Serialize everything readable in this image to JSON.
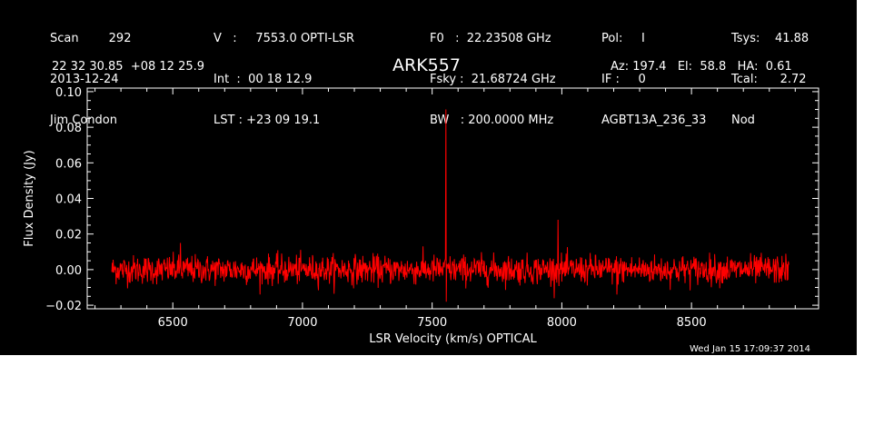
{
  "header": {
    "col1": [
      "Scan        292",
      "2013-12-24",
      "Jim Condon"
    ],
    "col2": [
      "V   :     7553.0 OPTI-LSR",
      "Int  :  00 18 12.9",
      "LST : +23 09 19.1"
    ],
    "col3": [
      "F0   :  22.23508 GHz",
      "Fsky :  21.68724 GHz",
      "BW   : 200.0000 MHz"
    ],
    "col4": [
      "Pol:     I",
      "IF :     0",
      "AGBT13A_236_33"
    ],
    "col5": [
      "Tsys:    41.88",
      "Tcal:      2.72",
      "Nod"
    ],
    "coords": "22 32 30.85  +08 12 25.9",
    "source": "ARK557",
    "azel": "Az: 197.4   El:  58.8   HA:  0.61",
    "timestamp": "Wed Jan 15 17:09:37 2014"
  },
  "colors": {
    "background": "#000000",
    "axes": "#ffffff",
    "trace": "#ff0000"
  },
  "chart_data": {
    "type": "line",
    "title": "ARK557",
    "xlabel": "LSR Velocity (km/s) OPTICAL",
    "ylabel": "Flux Density (Jy)",
    "xlim": [
      6170,
      8990
    ],
    "ylim": [
      -0.022,
      0.102
    ],
    "x_ticks": [
      6500,
      7000,
      7500,
      8000,
      8500
    ],
    "x_tick_labels": [
      "6500",
      "7000",
      "7500",
      "8000",
      "8500"
    ],
    "y_ticks": [
      -0.02,
      0.0,
      0.02,
      0.04,
      0.06,
      0.08,
      0.1
    ],
    "y_tick_labels": [
      "−0.02",
      "0.00",
      "0.02",
      "0.04",
      "0.06",
      "0.08",
      "0.10"
    ],
    "grid": false,
    "series": [
      {
        "x_range": [
          6265,
          8875
        ],
        "baseline": 0.0,
        "noise_rms": 0.004,
        "features": [
          {
            "x": 7553,
            "y": 0.09
          },
          {
            "x": 7553,
            "y": -0.018
          },
          {
            "x": 7985,
            "y": 0.028
          },
          {
            "x": 6530,
            "y": 0.015
          },
          {
            "x": 8210,
            "y": -0.014
          }
        ]
      }
    ]
  }
}
